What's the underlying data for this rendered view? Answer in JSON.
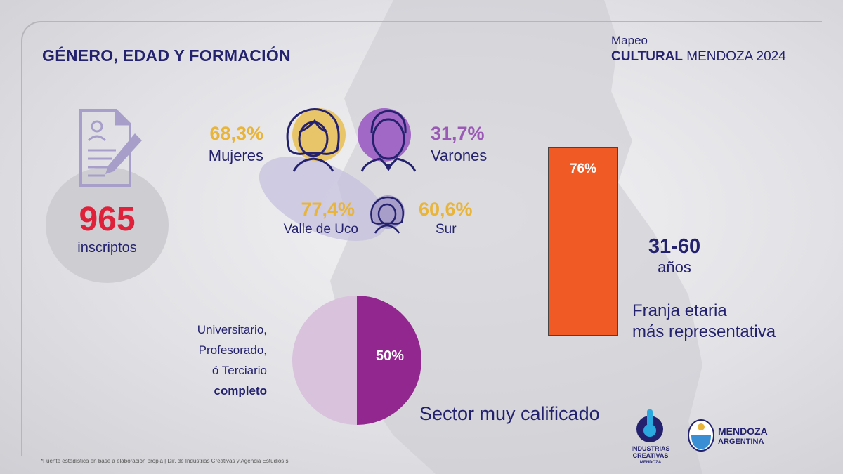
{
  "title": "GÉNERO, EDAD Y FORMACIÓN",
  "brand": {
    "line1": "Mapeo",
    "bold": "CULTURAL",
    "rest": "MENDOZA 2024"
  },
  "registrations": {
    "count": "965",
    "label": "inscriptos",
    "icon": "document-pencil-icon"
  },
  "gender": {
    "women": {
      "percent": "68,3%",
      "label": "Mujeres",
      "color": "#e9b43a"
    },
    "men": {
      "percent": "31,7%",
      "label": "Varones",
      "color": "#9b59b6"
    }
  },
  "regions": [
    {
      "percent": "77,4%",
      "label": "Valle de Uco"
    },
    {
      "percent": "60,6%",
      "label": "Sur"
    }
  ],
  "age": {
    "bar_percent": "76%",
    "bar_fraction": 0.76,
    "bar_color": "#ef5a25",
    "range": "31-60",
    "unit": "años",
    "desc_line1": "Franja etaria",
    "desc_line2": "más representativa"
  },
  "education": {
    "line1": "Universitario,",
    "line2": "Profesorado,",
    "line3": "ó Terciario",
    "line4": "completo",
    "percent": "50%",
    "fraction": 0.5,
    "color": "#92278f",
    "sector": "Sector muy calificado"
  },
  "footnote": "*Fuente estadística en base a elaboración propia | Dir. de Industrias Creativas y Agencia Estudios.s",
  "logos": {
    "industrias": {
      "line1": "INDUSTRIAS",
      "line2": "CREATIVAS",
      "line3": "MENDOZA"
    },
    "mendoza": {
      "line1": "MENDOZA",
      "line2": "ARGENTINA"
    }
  }
}
